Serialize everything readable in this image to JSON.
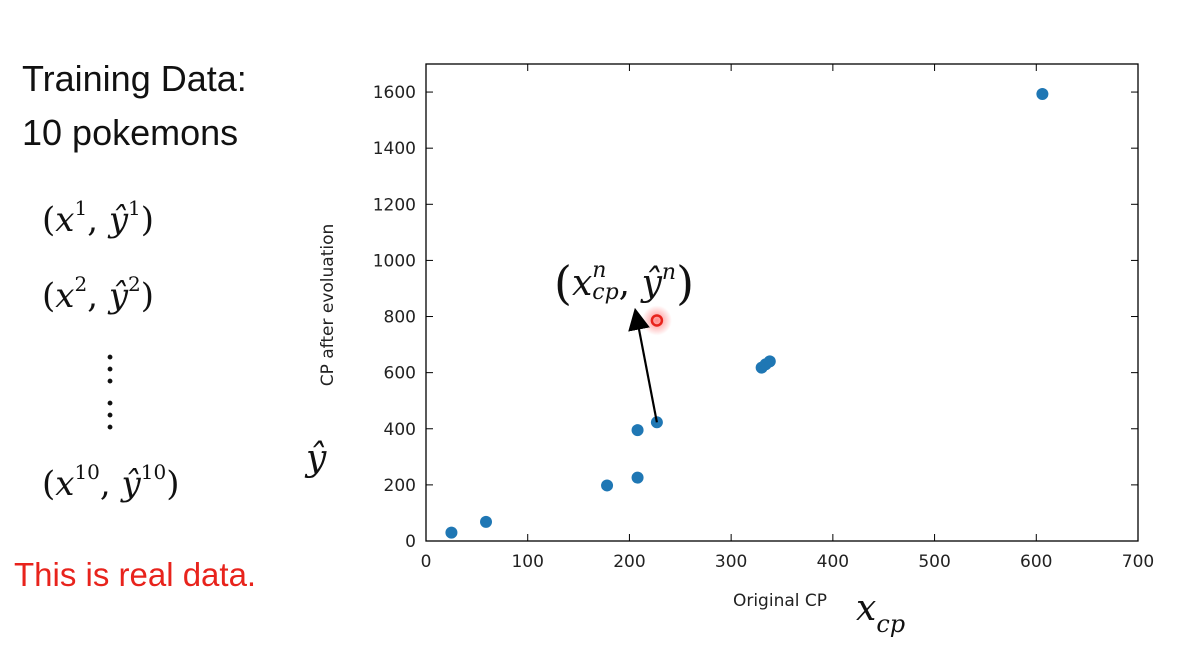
{
  "slide": {
    "title_line1": "Training Data:",
    "title_line2": "10 pokemons",
    "pairs": [
      {
        "x": "x",
        "sup_x": "1",
        "y": "ŷ",
        "sup_y": "1"
      },
      {
        "x": "x",
        "sup_x": "2",
        "y": "ŷ",
        "sup_y": "2"
      },
      {
        "x": "x",
        "sup_x": "10",
        "y": "ŷ",
        "sup_y": "10"
      }
    ],
    "note": "This is real data.",
    "note_color": "#e8231c",
    "yhat_label": "ŷ",
    "xcp_label": "x",
    "xcp_sub": "cp",
    "callout": {
      "x": "x",
      "sub": "cp",
      "sup": "n",
      "y": "ŷ",
      "sup_y": "n"
    }
  },
  "chart_data": {
    "type": "scatter",
    "xlabel": "Original CP",
    "ylabel": "CP after evoluation",
    "xlim": [
      0,
      700
    ],
    "ylim": [
      0,
      1700
    ],
    "xticks": [
      0,
      100,
      200,
      300,
      400,
      500,
      600,
      700
    ],
    "yticks": [
      0,
      200,
      400,
      600,
      800,
      1000,
      1200,
      1400,
      1600
    ],
    "grid": false,
    "point_color": "#1f77b4",
    "highlight_color": "#e8231c",
    "points": [
      {
        "x": 25,
        "y": 30
      },
      {
        "x": 59,
        "y": 68
      },
      {
        "x": 178,
        "y": 198
      },
      {
        "x": 208,
        "y": 226
      },
      {
        "x": 208,
        "y": 395
      },
      {
        "x": 227,
        "y": 423
      },
      {
        "x": 330,
        "y": 618
      },
      {
        "x": 334,
        "y": 630
      },
      {
        "x": 338,
        "y": 640
      },
      {
        "x": 606,
        "y": 1593
      }
    ],
    "highlight": {
      "x": 227,
      "y": 786
    },
    "arrow": {
      "from": {
        "x": 227,
        "y": 423
      },
      "to": {
        "x": 207,
        "y": 800
      }
    }
  }
}
